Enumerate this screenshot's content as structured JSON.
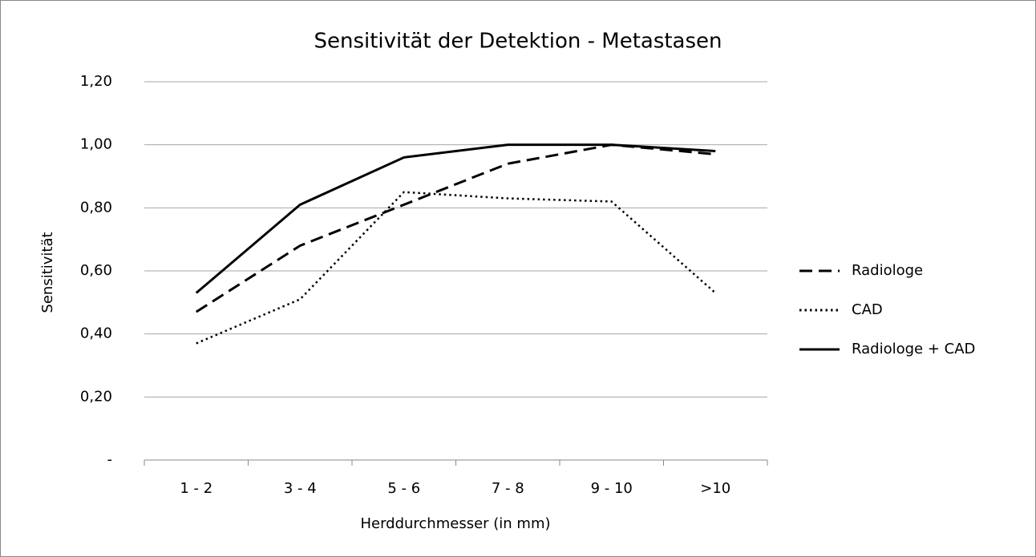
{
  "chart_data": {
    "type": "line",
    "title": "Sensitivität der Detektion - Metastasen",
    "x_label": "Herddurchmesser (in mm)",
    "y_label": "Sensitivität",
    "categories": [
      "1 - 2",
      "3 - 4",
      "5 - 6",
      "7 - 8",
      "9 - 10",
      ">10"
    ],
    "series": [
      {
        "name": "Radiologe",
        "color": "#000000",
        "dash": "dashed",
        "values": [
          0.47,
          0.68,
          0.81,
          0.94,
          1.0,
          0.97
        ]
      },
      {
        "name": "CAD",
        "color": "#000000",
        "dash": "dotted",
        "values": [
          0.37,
          0.51,
          0.85,
          0.83,
          0.82,
          0.53
        ]
      },
      {
        "name": "Radiologe + CAD",
        "color": "#000000",
        "dash": "solid",
        "values": [
          0.53,
          0.81,
          0.96,
          1.0,
          1.0,
          0.98
        ]
      }
    ],
    "ylim": [
      0,
      1.2
    ],
    "yticks": [
      {
        "value": 0,
        "label": "-"
      },
      {
        "value": 0.2,
        "label": "0,20"
      },
      {
        "value": 0.4,
        "label": "0,40"
      },
      {
        "value": 0.6,
        "label": "0,60"
      },
      {
        "value": 0.8,
        "label": "0,80"
      },
      {
        "value": 1.0,
        "label": "1,00"
      },
      {
        "value": 1.2,
        "label": "1,20"
      }
    ],
    "grid": true,
    "legend": "right"
  }
}
